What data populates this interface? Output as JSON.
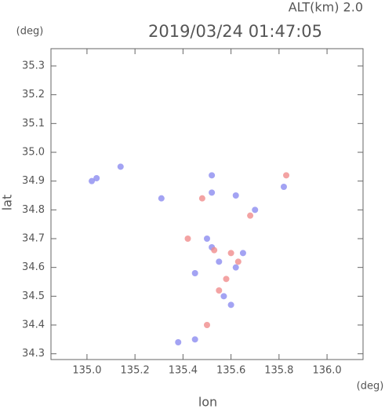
{
  "chart_data": {
    "type": "scatter",
    "title": "2019/03/24 01:47:05",
    "subtitle": "ALT(km) 2.0",
    "x_label": "lon",
    "y_label": "lat",
    "x_unit": "(deg)",
    "y_unit": "(deg)",
    "xlim": [
      134.85,
      136.15
    ],
    "ylim": [
      34.28,
      35.36
    ],
    "xticks": [
      {
        "value": 135,
        "label": "135.0"
      },
      135.2,
      135.4,
      135.6,
      135.8,
      {
        "value": 136,
        "label": "136.0"
      }
    ],
    "yticks": [
      34.3,
      34.4,
      34.5,
      34.6,
      34.7,
      34.8,
      34.9,
      {
        "value": 35,
        "label": "35.0"
      },
      35.1,
      35.2,
      35.3
    ],
    "grid": false,
    "series": [
      {
        "color": "#8c8cf0",
        "x": [
          135.02,
          135.04,
          135.14,
          135.31,
          135.52,
          135.52,
          135.62,
          135.5,
          135.52,
          135.55,
          135.62,
          135.65,
          135.45,
          135.57,
          135.6,
          135.38,
          135.45,
          135.7,
          135.82
        ],
        "y": [
          34.9,
          34.91,
          34.95,
          34.84,
          34.92,
          34.86,
          34.85,
          34.7,
          34.67,
          34.62,
          34.6,
          34.65,
          34.58,
          34.5,
          34.47,
          34.34,
          34.35,
          34.8,
          34.88
        ]
      },
      {
        "color": "#f08c8c",
        "x": [
          135.48,
          135.53,
          135.6,
          135.63,
          135.58,
          135.55,
          135.42,
          135.83,
          135.68,
          135.5
        ],
        "y": [
          34.84,
          34.66,
          34.65,
          34.62,
          34.56,
          34.52,
          34.7,
          34.92,
          34.78,
          34.4
        ]
      }
    ]
  }
}
